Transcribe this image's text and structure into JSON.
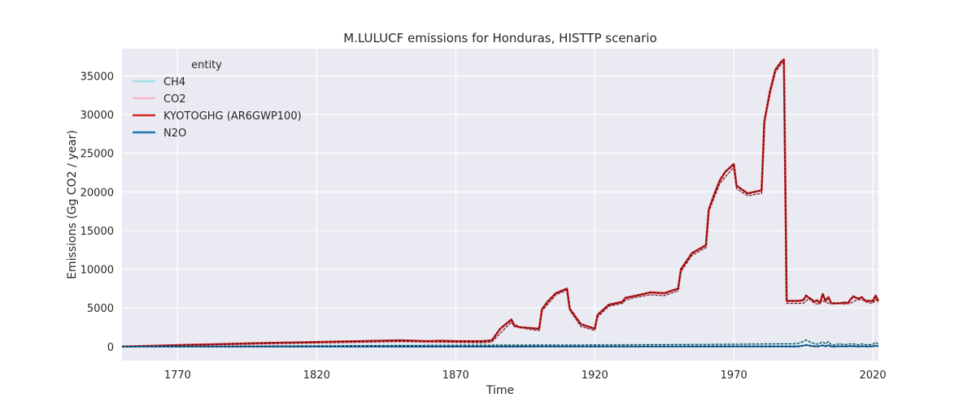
{
  "chart_data": {
    "type": "line",
    "title": "M.LULUCF emissions for Honduras, HISTTP scenario",
    "xlabel": "Time",
    "ylabel": "Emissions (Gg CO2 / year)",
    "xlim": [
      1750,
      2022
    ],
    "ylim": [
      -1800,
      38500
    ],
    "xticks": [
      1770,
      1820,
      1870,
      1920,
      1970,
      2020
    ],
    "yticks": [
      0,
      5000,
      10000,
      15000,
      20000,
      25000,
      30000,
      35000
    ],
    "grid": true,
    "legend": {
      "title": "entity",
      "placement": "top-left"
    },
    "series": [
      {
        "name": "CH4",
        "color": "#9ddbe8",
        "x": [
          1750,
          1800,
          1850,
          1880,
          1900,
          1920,
          1950,
          1970,
          1985,
          1990,
          1993,
          1995,
          1996,
          1998,
          2000,
          2002,
          2003,
          2004,
          2005,
          2006,
          2008,
          2010,
          2012,
          2014,
          2015,
          2016,
          2018,
          2020,
          2021,
          2022
        ],
        "y": [
          0,
          80,
          150,
          180,
          200,
          220,
          260,
          300,
          350,
          350,
          400,
          650,
          850,
          500,
          300,
          600,
          350,
          650,
          250,
          200,
          350,
          250,
          350,
          300,
          200,
          350,
          200,
          300,
          550,
          300
        ]
      },
      {
        "name": "CO2",
        "color": "#f4b6c8",
        "x": [
          1750,
          1800,
          1850,
          1880,
          1883,
          1890,
          1891,
          1897,
          1900,
          1901,
          1906,
          1910,
          1911,
          1915,
          1920,
          1921,
          1925,
          1930,
          1931,
          1935,
          1940,
          1945,
          1950,
          1951,
          1955,
          1960,
          1961,
          1963,
          1965,
          1970,
          1971,
          1975,
          1980,
          1981,
          1983,
          1985,
          1987,
          1988,
          1989,
          1990,
          1993,
          1995,
          1997,
          1999,
          2000,
          2002,
          2004,
          2006,
          2008,
          2010,
          2012,
          2014,
          2016,
          2018,
          2020,
          2021,
          2022
        ],
        "y": [
          0,
          350,
          650,
          500,
          600,
          3200,
          2600,
          2200,
          2100,
          4600,
          6700,
          7300,
          4700,
          2600,
          2100,
          3800,
          5200,
          5600,
          6000,
          6400,
          6700,
          6600,
          7200,
          9700,
          11800,
          12800,
          17400,
          19300,
          21100,
          23200,
          20400,
          19500,
          19800,
          28900,
          32600,
          35500,
          36500,
          36800,
          5600,
          5600,
          5600,
          5600,
          6200,
          5600,
          5500,
          5900,
          5600,
          5500,
          5600,
          5500,
          5600,
          6000,
          6100,
          5700,
          5600,
          6100,
          5700
        ]
      },
      {
        "name": "KYOTOGHG (AR6GWP100)",
        "color": "#d62728",
        "x": [
          1750,
          1800,
          1850,
          1860,
          1865,
          1870,
          1880,
          1883,
          1886,
          1890,
          1891,
          1893,
          1897,
          1900,
          1901,
          1903,
          1906,
          1910,
          1911,
          1915,
          1920,
          1921,
          1925,
          1930,
          1931,
          1935,
          1940,
          1945,
          1950,
          1951,
          1955,
          1960,
          1961,
          1963,
          1965,
          1967,
          1970,
          1971,
          1975,
          1980,
          1981,
          1983,
          1985,
          1987,
          1988,
          1989,
          1990,
          1993,
          1995,
          1996,
          1997,
          1998,
          1999,
          2000,
          2001,
          2002,
          2003,
          2004,
          2005,
          2006,
          2008,
          2010,
          2011,
          2012,
          2013,
          2014,
          2015,
          2016,
          2017,
          2018,
          2020,
          2021,
          2022
        ],
        "y": [
          0,
          450,
          800,
          700,
          750,
          700,
          700,
          800,
          2300,
          3500,
          2800,
          2500,
          2400,
          2300,
          4800,
          5800,
          6900,
          7500,
          4900,
          2900,
          2300,
          4100,
          5400,
          5800,
          6300,
          6600,
          7000,
          6900,
          7500,
          10000,
          12100,
          13100,
          17700,
          19700,
          21500,
          22600,
          23600,
          20800,
          19800,
          20200,
          29100,
          33000,
          35800,
          36800,
          37100,
          5900,
          5900,
          5900,
          6000,
          6600,
          6300,
          6100,
          5800,
          6000,
          5600,
          6800,
          5900,
          6400,
          5600,
          5600,
          5600,
          5700,
          5600,
          6100,
          6500,
          6300,
          6200,
          6400,
          6000,
          5900,
          5900,
          6600,
          5900
        ]
      },
      {
        "name": "N2O",
        "color": "#1f77b4",
        "x": [
          1750,
          1850,
          1900,
          1950,
          1985,
          1990,
          1993,
          1995,
          1996,
          1998,
          2000,
          2002,
          2003,
          2004,
          2005,
          2006,
          2008,
          2010,
          2012,
          2014,
          2015,
          2016,
          2018,
          2020,
          2021,
          2022
        ],
        "y": [
          0,
          10,
          15,
          20,
          25,
          25,
          30,
          120,
          200,
          80,
          20,
          150,
          40,
          170,
          20,
          10,
          60,
          20,
          80,
          40,
          10,
          60,
          20,
          40,
          120,
          40
        ]
      }
    ]
  }
}
